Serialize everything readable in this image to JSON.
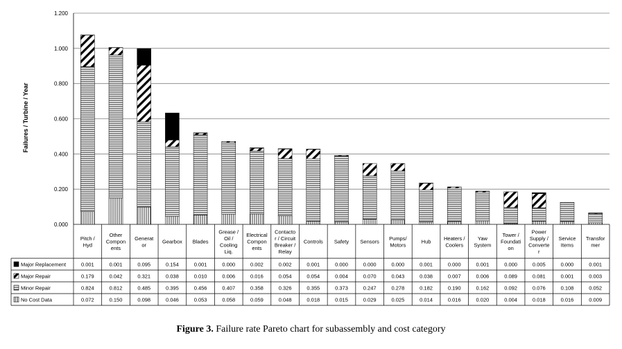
{
  "caption": {
    "label": "Figure 3.",
    "text": "Failure rate Pareto chart for subassembly and cost category"
  },
  "chart_data": {
    "type": "bar",
    "stacked": true,
    "title": "",
    "xlabel": "",
    "ylabel": "Failures / Turbine / Year",
    "ylim": [
      0,
      1.2
    ],
    "yticks": [
      "0.000",
      "0.200",
      "0.400",
      "0.600",
      "0.800",
      "1.000",
      "1.200"
    ],
    "grid": true,
    "legend_position": "data-table-left",
    "categories": [
      [
        "Pitch /",
        "Hyd"
      ],
      [
        "Other",
        "Compon",
        "ents"
      ],
      [
        "Generat",
        "or"
      ],
      [
        "Gearbox"
      ],
      [
        "Blades"
      ],
      [
        "Grease /",
        "Oil /",
        "Cooling",
        "Liq."
      ],
      [
        "Electrical",
        "Compon",
        "ents"
      ],
      [
        "Contacto",
        "r / Circuit",
        "Breaker /",
        "Relay"
      ],
      [
        "Controls"
      ],
      [
        "Safety"
      ],
      [
        "Sensors"
      ],
      [
        "Pumps/",
        "Motors"
      ],
      [
        "Hub"
      ],
      [
        "Heaters /",
        "Coolers"
      ],
      [
        "Yaw",
        "System"
      ],
      [
        "Tower /",
        "Foundati",
        "on"
      ],
      [
        "Power",
        "Supply /",
        "Converte",
        "r"
      ],
      [
        "Service",
        "Items"
      ],
      [
        "Transfor",
        "mer"
      ]
    ],
    "series": [
      {
        "name": "Major Replacement",
        "pattern": "solid-black",
        "labels": [
          "0.001",
          "0.001",
          "0.095",
          "0.154",
          "0.001",
          "0.000",
          "0.002",
          "0.002",
          "0.001",
          "0.000",
          "0.000",
          "0.000",
          "0.001",
          "0.000",
          "0.001",
          "0.000",
          "0.005",
          "0.000",
          "0.001"
        ],
        "values": [
          0.001,
          0.001,
          0.095,
          0.154,
          0.001,
          0.0,
          0.002,
          0.002,
          0.001,
          0.0,
          0.0,
          0.0,
          0.001,
          0.0,
          0.001,
          0.0,
          0.005,
          0.0,
          0.001
        ]
      },
      {
        "name": "Major Repair",
        "pattern": "diagonal-stripes",
        "labels": [
          "0.179",
          "0.042",
          "0.321",
          "0.038",
          "0.010",
          "0.006",
          "0.016",
          "0.054",
          "0.054",
          "0.004",
          "0.070",
          "0.043",
          "0.038",
          "0.007",
          "0.006",
          "0.089",
          "0.081",
          "0.001",
          "0.003"
        ],
        "values": [
          0.179,
          0.042,
          0.321,
          0.038,
          0.01,
          0.006,
          0.016,
          0.054,
          0.054,
          0.004,
          0.07,
          0.043,
          0.038,
          0.007,
          0.006,
          0.089,
          0.081,
          0.001,
          0.003
        ]
      },
      {
        "name": "Minor Repair",
        "pattern": "horizontal-stripes",
        "labels": [
          "0.824",
          "0.812",
          "0.485",
          "0.395",
          "0.456",
          "0.407",
          "0.358",
          "0.326",
          "0.355",
          "0.373",
          "0.247",
          "0.278",
          "0.182",
          "0.190",
          "0.162",
          "0.092",
          "0.076",
          "0.108",
          "0.052"
        ],
        "values": [
          0.824,
          0.812,
          0.485,
          0.395,
          0.456,
          0.407,
          0.358,
          0.326,
          0.355,
          0.373,
          0.247,
          0.278,
          0.182,
          0.19,
          0.162,
          0.092,
          0.076,
          0.108,
          0.052
        ]
      },
      {
        "name": "No Cost Data",
        "pattern": "vertical-stripes",
        "labels": [
          "0.072",
          "0.150",
          "0.098",
          "0.046",
          "0.053",
          "0.058",
          "0.059",
          "0.048",
          "0.018",
          "0.015",
          "0.029",
          "0.025",
          "0.014",
          "0.016",
          "0.020",
          "0.004",
          "0.018",
          "0.016",
          "0.009"
        ],
        "values": [
          0.072,
          0.15,
          0.098,
          0.046,
          0.053,
          0.058,
          0.059,
          0.048,
          0.018,
          0.015,
          0.029,
          0.025,
          0.014,
          0.016,
          0.02,
          0.004,
          0.018,
          0.016,
          0.009
        ]
      }
    ],
    "colors": {
      "major_replacement": "#000000",
      "stroke": "#000000",
      "grid": "#808080",
      "background": "#ffffff"
    }
  }
}
